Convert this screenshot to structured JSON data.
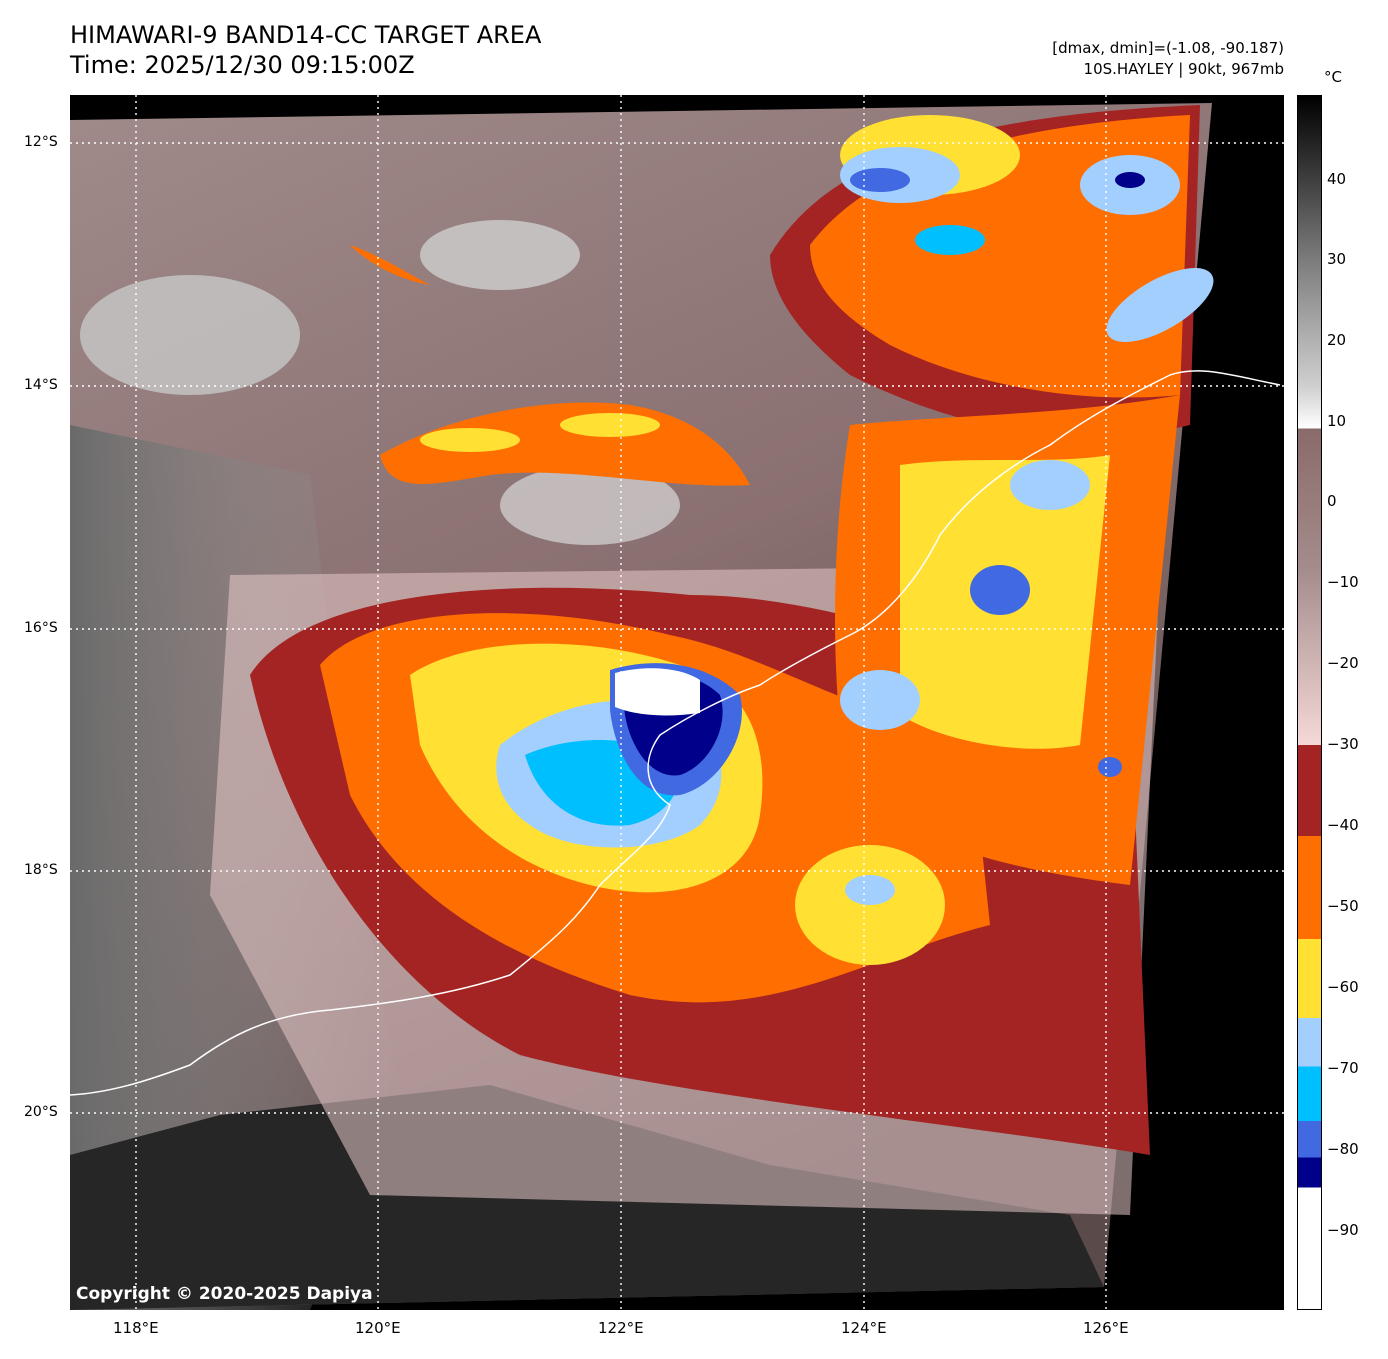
{
  "title": {
    "line1": "HIMAWARI-9 BAND14-CC TARGET AREA",
    "line2": "Time: 2025/12/30 09:15:00Z"
  },
  "info": {
    "line1": "[dmax, dmin]=(-1.08, -90.187)",
    "line2": "10S.HAYLEY | 90kt, 967mb"
  },
  "copyright": "Copyright © 2020-2025 Dapiya",
  "lat_labels": [
    "12°S",
    "14°S",
    "16°S",
    "18°S",
    "20°S"
  ],
  "lon_labels": [
    "118°E",
    "120°E",
    "122°E",
    "124°E",
    "126°E"
  ],
  "colorbar": {
    "unit": "°C",
    "ticks": [
      "40",
      "30",
      "20",
      "10",
      "0",
      "−10",
      "−20",
      "−30",
      "−40",
      "−50",
      "−60",
      "−70",
      "−80",
      "−90"
    ],
    "colors": {
      "white": "#ffffff",
      "navy": "#00008b",
      "royal": "#4169e1",
      "cyan": "#00bfff",
      "light_blue": "#a3cfff",
      "yellow": "#ffe033",
      "orange": "#ff6e00",
      "dark_red": "#a42424",
      "pink": "#f5d8d8",
      "mauve": "#8a6a6a",
      "gray": "#808080",
      "black": "#000000"
    }
  }
}
